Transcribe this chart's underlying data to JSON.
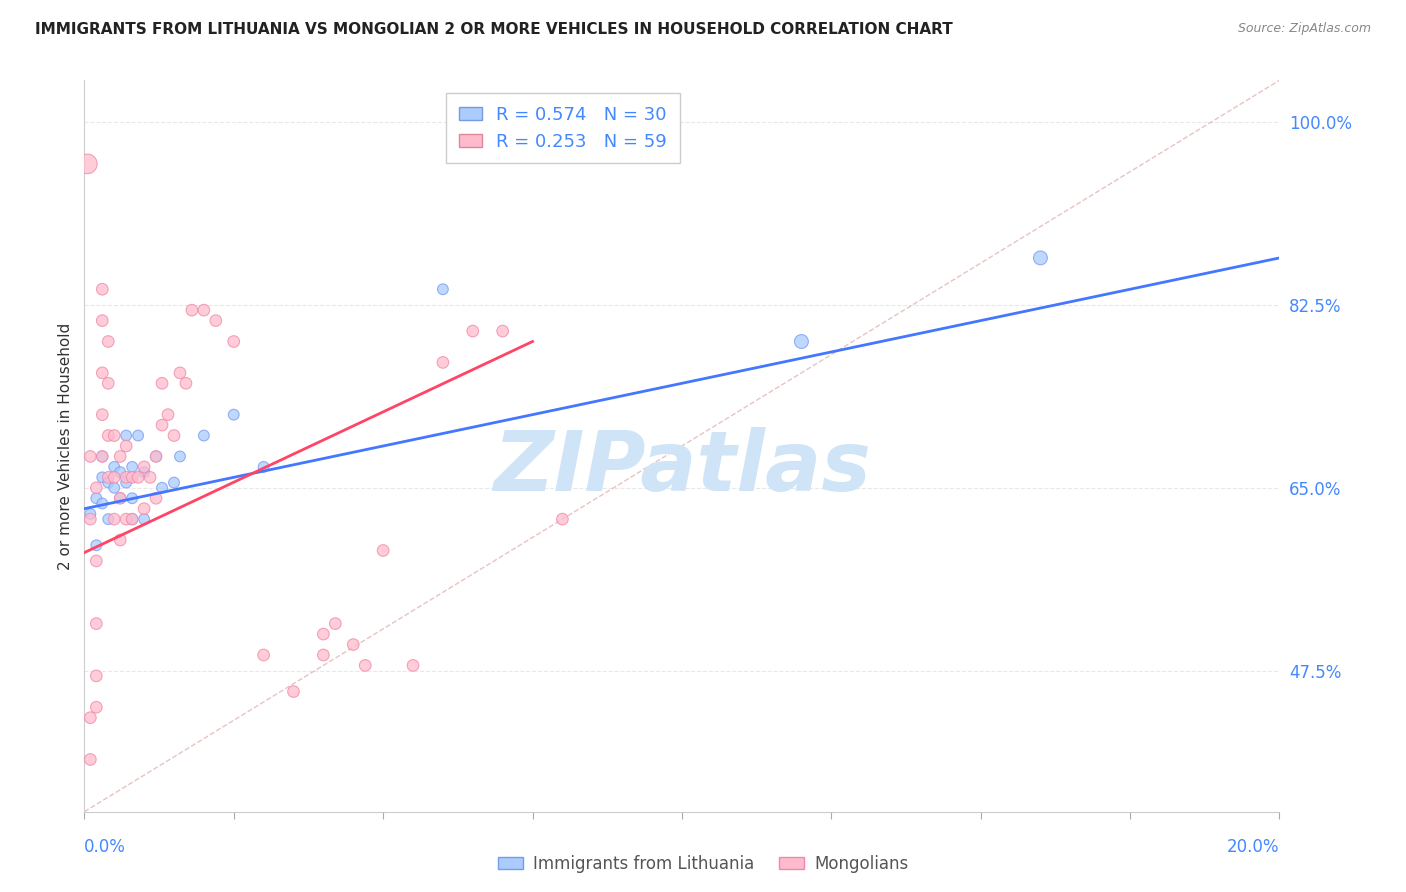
{
  "title": "IMMIGRANTS FROM LITHUANIA VS MONGOLIAN 2 OR MORE VEHICLES IN HOUSEHOLD CORRELATION CHART",
  "source": "Source: ZipAtlas.com",
  "ylabel": "2 or more Vehicles in Household",
  "ytick_labels": [
    "47.5%",
    "65.0%",
    "82.5%",
    "100.0%"
  ],
  "ytick_values": [
    0.475,
    0.65,
    0.825,
    1.0
  ],
  "xtick_positions": [
    0.0,
    0.025,
    0.05,
    0.075,
    0.1,
    0.125,
    0.15,
    0.175,
    0.2
  ],
  "xmin": 0.0,
  "xmax": 0.2,
  "ymin": 0.34,
  "ymax": 1.04,
  "legend_entries": [
    {
      "label": "R = 0.574   N = 30",
      "facecolor": "#aaccff",
      "edgecolor": "#7799dd"
    },
    {
      "label": "R = 0.253   N = 59",
      "facecolor": "#ffbbcc",
      "edgecolor": "#dd8899"
    }
  ],
  "blue_scatter_x": [
    0.001,
    0.002,
    0.002,
    0.003,
    0.003,
    0.003,
    0.004,
    0.004,
    0.005,
    0.005,
    0.006,
    0.006,
    0.007,
    0.007,
    0.008,
    0.008,
    0.008,
    0.009,
    0.01,
    0.01,
    0.012,
    0.013,
    0.015,
    0.016,
    0.02,
    0.025,
    0.03,
    0.06,
    0.12,
    0.16
  ],
  "blue_scatter_y": [
    0.625,
    0.595,
    0.64,
    0.66,
    0.635,
    0.68,
    0.655,
    0.62,
    0.67,
    0.65,
    0.64,
    0.665,
    0.7,
    0.655,
    0.64,
    0.67,
    0.62,
    0.7,
    0.62,
    0.665,
    0.68,
    0.65,
    0.655,
    0.68,
    0.7,
    0.72,
    0.67,
    0.84,
    0.79,
    0.87
  ],
  "blue_scatter_sizes": [
    60,
    60,
    60,
    60,
    60,
    60,
    60,
    60,
    60,
    60,
    60,
    60,
    60,
    60,
    60,
    60,
    60,
    60,
    60,
    60,
    60,
    60,
    60,
    60,
    60,
    60,
    60,
    60,
    100,
    100
  ],
  "pink_scatter_x": [
    0.0005,
    0.001,
    0.001,
    0.001,
    0.001,
    0.002,
    0.002,
    0.002,
    0.002,
    0.002,
    0.003,
    0.003,
    0.003,
    0.003,
    0.003,
    0.004,
    0.004,
    0.004,
    0.004,
    0.005,
    0.005,
    0.005,
    0.006,
    0.006,
    0.006,
    0.007,
    0.007,
    0.007,
    0.008,
    0.008,
    0.009,
    0.01,
    0.01,
    0.011,
    0.012,
    0.012,
    0.013,
    0.013,
    0.014,
    0.015,
    0.016,
    0.017,
    0.018,
    0.02,
    0.022,
    0.025,
    0.03,
    0.035,
    0.04,
    0.04,
    0.042,
    0.045,
    0.047,
    0.05,
    0.055,
    0.06,
    0.065,
    0.07,
    0.08
  ],
  "pink_scatter_y": [
    0.96,
    0.68,
    0.62,
    0.43,
    0.39,
    0.65,
    0.58,
    0.52,
    0.47,
    0.44,
    0.84,
    0.81,
    0.76,
    0.72,
    0.68,
    0.79,
    0.75,
    0.7,
    0.66,
    0.7,
    0.66,
    0.62,
    0.68,
    0.64,
    0.6,
    0.69,
    0.66,
    0.62,
    0.66,
    0.62,
    0.66,
    0.67,
    0.63,
    0.66,
    0.68,
    0.64,
    0.75,
    0.71,
    0.72,
    0.7,
    0.76,
    0.75,
    0.82,
    0.82,
    0.81,
    0.79,
    0.49,
    0.455,
    0.51,
    0.49,
    0.52,
    0.5,
    0.48,
    0.59,
    0.48,
    0.77,
    0.8,
    0.8,
    0.62
  ],
  "pink_scatter_sizes": [
    200,
    70,
    70,
    70,
    70,
    70,
    70,
    70,
    70,
    70,
    70,
    70,
    70,
    70,
    70,
    70,
    70,
    70,
    70,
    70,
    70,
    70,
    70,
    70,
    70,
    70,
    70,
    70,
    70,
    70,
    70,
    70,
    70,
    70,
    70,
    70,
    70,
    70,
    70,
    70,
    70,
    70,
    70,
    70,
    70,
    70,
    70,
    70,
    70,
    70,
    70,
    70,
    70,
    70,
    70,
    70,
    70,
    70,
    70
  ],
  "blue_line_x": [
    0.0,
    0.2
  ],
  "blue_line_y": [
    0.63,
    0.87
  ],
  "pink_line_x": [
    0.0,
    0.075
  ],
  "pink_line_y": [
    0.588,
    0.79
  ],
  "ref_line_x": [
    0.0,
    0.2
  ],
  "ref_line_y": [
    0.34,
    1.04
  ],
  "blue_face_color": "#aaccff",
  "blue_edge_color": "#7799ee",
  "pink_face_color": "#ffbbcc",
  "pink_edge_color": "#ee88aa",
  "blue_line_color": "#4477ff",
  "pink_line_color": "#ff4466",
  "ref_line_color": "#ddaaaa",
  "label_color": "#4488ff",
  "grid_color": "#e8e8e8",
  "watermark_text": "ZIPatlas",
  "watermark_color": "#d0e4f8",
  "bottom_legend": [
    "Immigrants from Lithuania",
    "Mongolians"
  ]
}
